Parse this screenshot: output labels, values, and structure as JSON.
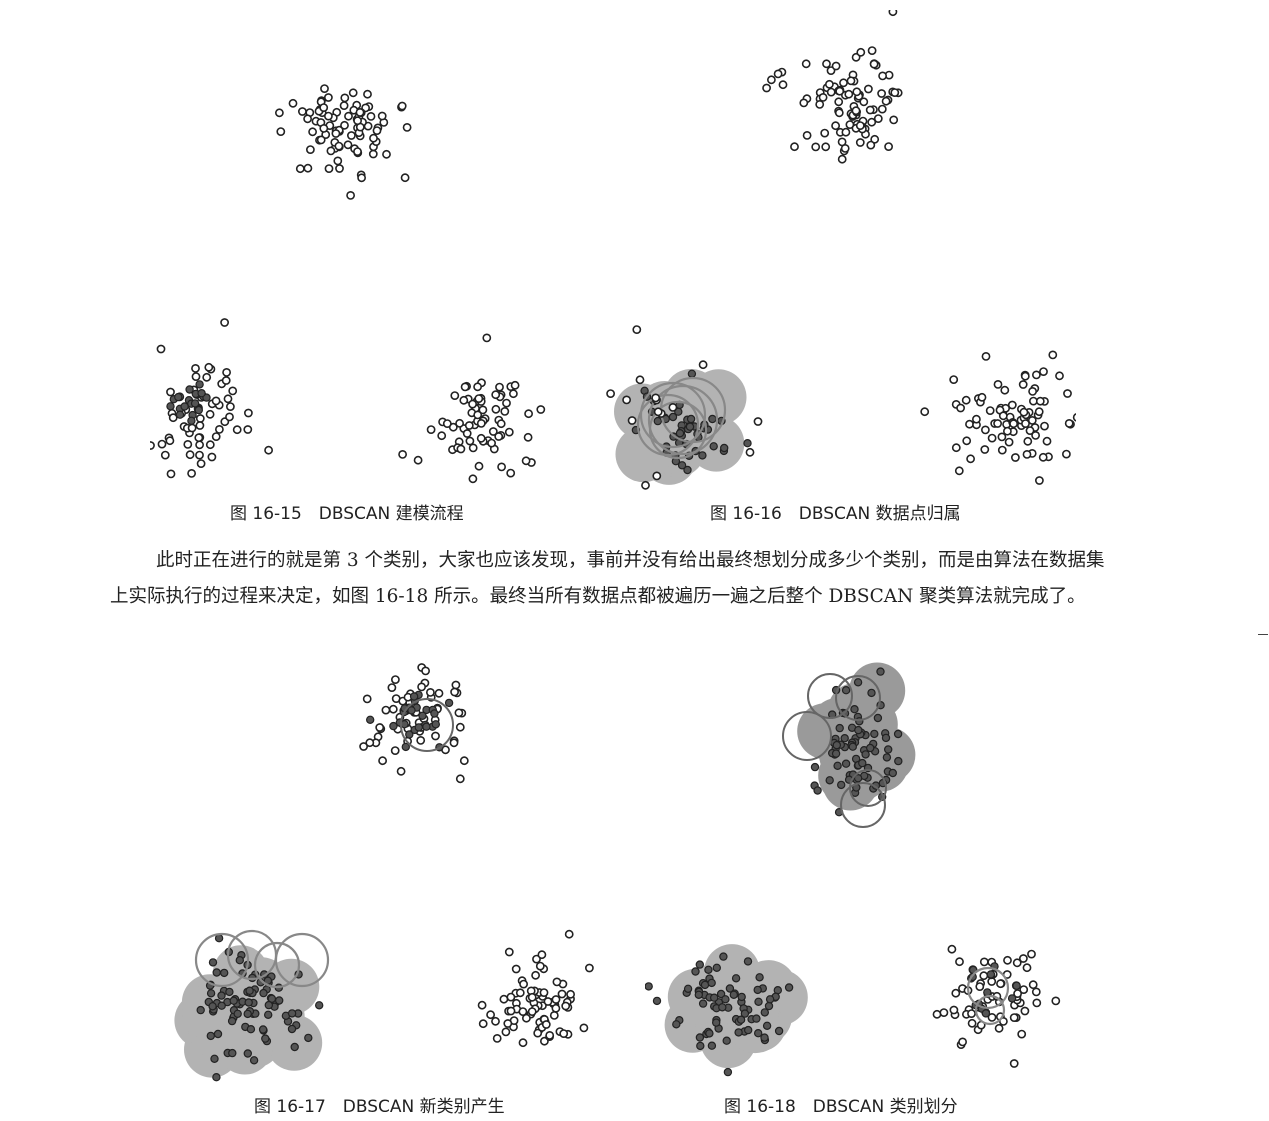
{
  "figures": [
    {
      "id": "16-15",
      "caption": "图 16-15　DBSCAN 建模流程"
    },
    {
      "id": "16-16",
      "caption": "图 16-16　DBSCAN 数据点归属"
    },
    {
      "id": "16-17",
      "caption": "图 16-17　DBSCAN 新类别产生"
    },
    {
      "id": "16-18",
      "caption": "图 16-18　DBSCAN 类别划分"
    }
  ],
  "paragraph": {
    "text": "此时正在进行的就是第 3 个类别，大家也应该发现，事前并没有给出最终想划分成多少个类别，而是由算法在数据集上实际执行的过程来决定，如图 16-18 所示。最终当所有数据点都被遍历一遍之后整个 DBSCAN 聚类算法就完成了。"
  },
  "colors": {
    "open_point_fill": "#ffffff",
    "core_point_fill": "#555555",
    "region_fill": "#b3b3b3",
    "ring_stroke": "#888888"
  }
}
